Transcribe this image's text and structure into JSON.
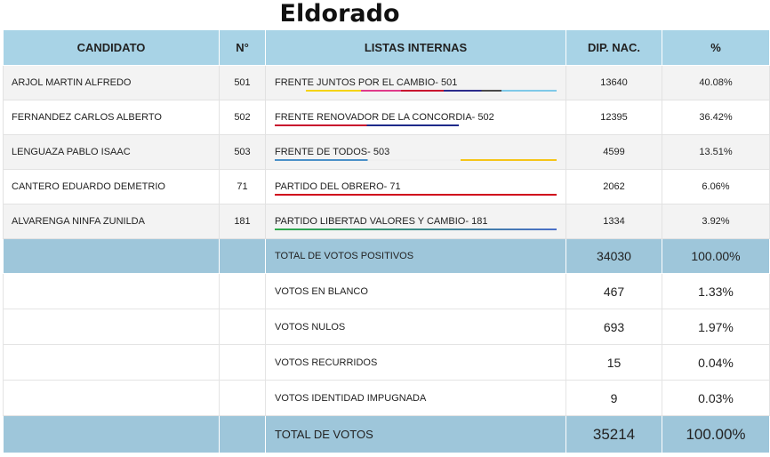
{
  "title": "Eldorado",
  "headers": [
    "CANDIDATO",
    "N°",
    "LISTAS INTERNAS",
    "DIP. NAC.",
    "%"
  ],
  "rows": [
    {
      "candidato": "ARJOL MARTIN ALFREDO",
      "numero": "501",
      "lista": "FRENTE JUNTOS POR EL CAMBIO- 501",
      "votos": "13640",
      "pct": "40.08%"
    },
    {
      "candidato": "FERNANDEZ CARLOS ALBERTO",
      "numero": "502",
      "lista": "FRENTE RENOVADOR DE LA CONCORDIA- 502",
      "votos": "12395",
      "pct": "36.42%"
    },
    {
      "candidato": "LENGUAZA PABLO ISAAC",
      "numero": "503",
      "lista": "FRENTE DE TODOS- 503",
      "votos": "4599",
      "pct": "13.51%"
    },
    {
      "candidato": "CANTERO EDUARDO DEMETRIO",
      "numero": "71",
      "lista": "PARTIDO DEL OBRERO- 71",
      "votos": "2062",
      "pct": "6.06%"
    },
    {
      "candidato": "ALVARENGA NINFA ZUNILDA",
      "numero": "181",
      "lista": "PARTIDO LIBERTAD VALORES Y CAMBIO- 181",
      "votos": "1334",
      "pct": "3.92%"
    }
  ],
  "list_colors": {
    "juntos": [
      "#f5d313",
      "#e03a8a",
      "#c8102e",
      "#2b2b8c",
      "#4a4a4a",
      "#7fc9e8"
    ],
    "renovador": [
      "#c8102e",
      "#1e2a8a"
    ],
    "todos": [
      "#4a90c8",
      "#f0f0f0",
      "#f5c518"
    ],
    "obrero": [
      "#d0021b"
    ],
    "libertad": [
      "#2eaa4a",
      "#4a6fc8"
    ]
  },
  "totals": {
    "label": "TOTAL DE VOTOS POSITIVOS",
    "votos": "34030",
    "pct": "100.00%"
  },
  "summary": [
    {
      "label": "VOTOS EN BLANCO",
      "votos": "467",
      "pct": "1.33%"
    },
    {
      "label": "VOTOS NULOS",
      "votos": "693",
      "pct": "1.97%"
    },
    {
      "label": "VOTOS RECURRIDOS",
      "votos": "15",
      "pct": "0.04%"
    },
    {
      "label": "VOTOS IDENTIDAD IMPUGNADA",
      "votos": "9",
      "pct": "0.03%"
    }
  ],
  "final": {
    "label": "TOTAL DE VOTOS",
    "votos": "35214",
    "pct": "100.00%"
  }
}
